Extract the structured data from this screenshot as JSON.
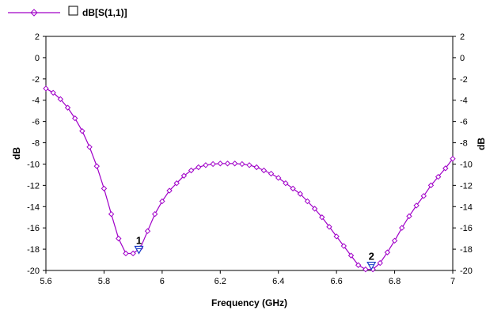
{
  "chart_data": {
    "type": "line",
    "xlabel": "Frequency (GHz)",
    "ylabel": "dB",
    "xlim": [
      5.6,
      7.0
    ],
    "ylim": [
      -20,
      2
    ],
    "xticks": [
      5.6,
      5.8,
      6,
      6.2,
      6.4,
      6.6,
      6.8,
      7
    ],
    "xtick_labels": [
      "5.6",
      "5.8",
      "6",
      "6.2",
      "6.4",
      "6.6",
      "6.8",
      "7"
    ],
    "yticks": [
      2,
      0,
      -2,
      -4,
      -6,
      -8,
      -10,
      -12,
      -14,
      -16,
      -18,
      -20
    ],
    "ytick_labels": [
      "2",
      "0",
      "-2",
      "-4",
      "-6",
      "-8",
      "-10",
      "-12",
      "-14",
      "-16",
      "-18",
      "-20"
    ],
    "grid": false,
    "legend_placement": "top-left",
    "series": [
      {
        "name": "dB[S(1,1)]",
        "color": "#a000c8",
        "marker": "diamond",
        "x": [
          5.6,
          5.625,
          5.65,
          5.675,
          5.7,
          5.725,
          5.75,
          5.775,
          5.8,
          5.825,
          5.85,
          5.875,
          5.9,
          5.925,
          5.95,
          5.975,
          6.0,
          6.025,
          6.05,
          6.075,
          6.1,
          6.125,
          6.15,
          6.175,
          6.2,
          6.225,
          6.25,
          6.275,
          6.3,
          6.325,
          6.35,
          6.375,
          6.4,
          6.425,
          6.45,
          6.475,
          6.5,
          6.525,
          6.55,
          6.575,
          6.6,
          6.625,
          6.65,
          6.675,
          6.7,
          6.725,
          6.75,
          6.775,
          6.8,
          6.825,
          6.85,
          6.875,
          6.9,
          6.925,
          6.95,
          6.975,
          7.0
        ],
        "y": [
          -2.9,
          -3.3,
          -3.9,
          -4.7,
          -5.7,
          -6.9,
          -8.4,
          -10.2,
          -12.3,
          -14.7,
          -17.0,
          -18.4,
          -18.4,
          -17.9,
          -16.3,
          -14.7,
          -13.5,
          -12.5,
          -11.8,
          -11.1,
          -10.6,
          -10.3,
          -10.1,
          -10.0,
          -9.95,
          -9.95,
          -9.95,
          -10.0,
          -10.1,
          -10.3,
          -10.6,
          -10.9,
          -11.3,
          -11.8,
          -12.3,
          -12.8,
          -13.5,
          -14.2,
          -15.0,
          -15.9,
          -16.8,
          -17.7,
          -18.6,
          -19.5,
          -19.9,
          -19.9,
          -19.3,
          -18.3,
          -17.2,
          -16.0,
          -14.9,
          -13.9,
          -13.0,
          -12.0,
          -11.2,
          -10.4,
          -9.5
        ]
      }
    ],
    "markers": [
      {
        "label": "1",
        "x": 5.92,
        "y": -18.4
      },
      {
        "label": "2",
        "x": 6.72,
        "y": -19.9
      }
    ]
  }
}
